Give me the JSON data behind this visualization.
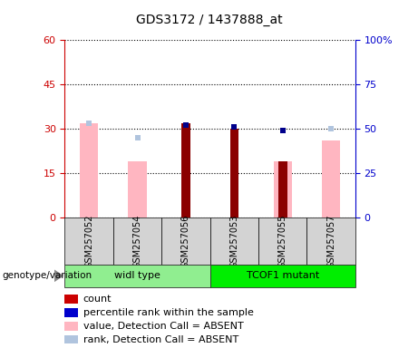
{
  "title": "GDS3172 / 1437888_at",
  "samples": [
    "GSM257052",
    "GSM257054",
    "GSM257056",
    "GSM257053",
    "GSM257055",
    "GSM257057"
  ],
  "groups": [
    {
      "name": "widl type",
      "indices": [
        0,
        1,
        2
      ]
    },
    {
      "name": "TCOF1 mutant",
      "indices": [
        3,
        4,
        5
      ]
    }
  ],
  "count_values": [
    0,
    0,
    32,
    30,
    19,
    0
  ],
  "percentile_rank_values": [
    0,
    0,
    52,
    51,
    49,
    0
  ],
  "absent_value_bars": [
    32,
    19,
    0,
    0,
    19,
    26
  ],
  "absent_rank_dots": [
    53,
    45,
    0,
    0,
    0,
    50
  ],
  "ylim_left": [
    0,
    60
  ],
  "ylim_right": [
    0,
    100
  ],
  "left_yticks": [
    0,
    15,
    30,
    45,
    60
  ],
  "right_yticks": [
    0,
    25,
    50,
    75,
    100
  ],
  "right_yticklabels": [
    "0",
    "25",
    "50",
    "75",
    "100%"
  ],
  "left_axis_color": "#CC0000",
  "right_axis_color": "#0000CC",
  "count_color": "#8B0000",
  "percentile_color": "#00008B",
  "absent_value_color": "#FFB6C1",
  "absent_rank_color": "#B0C4DE",
  "plot_bg_color": "#FFFFFF",
  "sample_box_color": "#D3D3D3",
  "group_box_color_1": "#90EE90",
  "group_box_color_2": "#00EE00",
  "genotype_label": "genotype/variation",
  "legend_items": [
    {
      "label": "count",
      "color": "#CC0000",
      "type": "square"
    },
    {
      "label": "percentile rank within the sample",
      "color": "#0000CC",
      "type": "square"
    },
    {
      "label": "value, Detection Call = ABSENT",
      "color": "#FFB6C1",
      "type": "square"
    },
    {
      "label": "rank, Detection Call = ABSENT",
      "color": "#B0C4DE",
      "type": "square"
    }
  ]
}
